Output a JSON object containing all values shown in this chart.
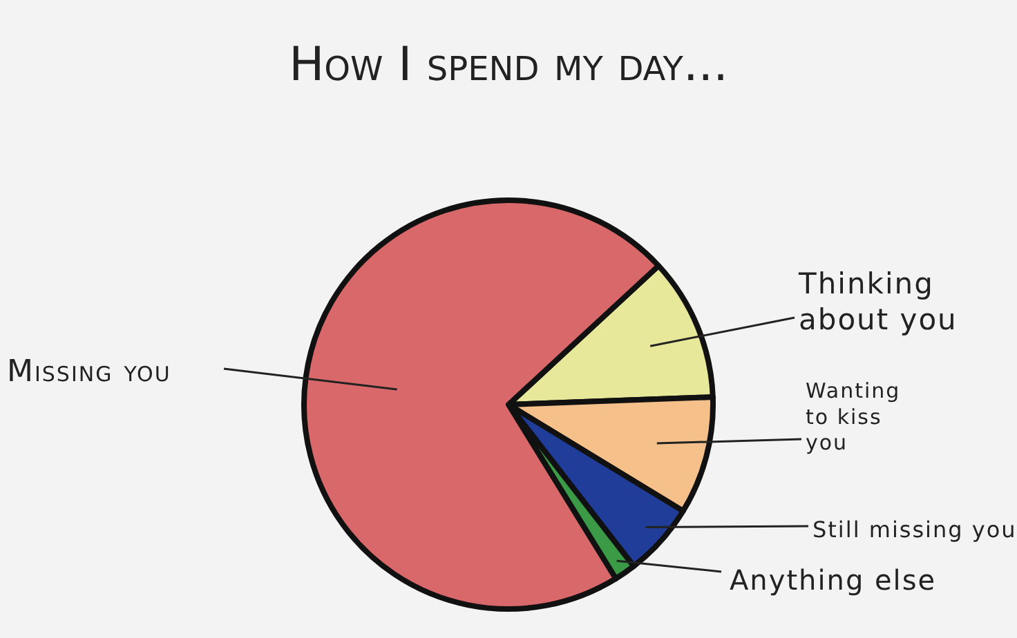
{
  "chart_data": {
    "type": "pie",
    "title": "How I spend my day...",
    "categories": [
      "Thinking about you",
      "Wanting to kiss you",
      "Still missing you",
      "Anything else",
      "Missing you"
    ],
    "values": [
      11.3,
      9.3,
      5.8,
      1.7,
      71.9
    ],
    "colors": [
      "#e8e89a",
      "#f5c08a",
      "#1f3d99",
      "#3a9a45",
      "#d9686a"
    ]
  }
}
